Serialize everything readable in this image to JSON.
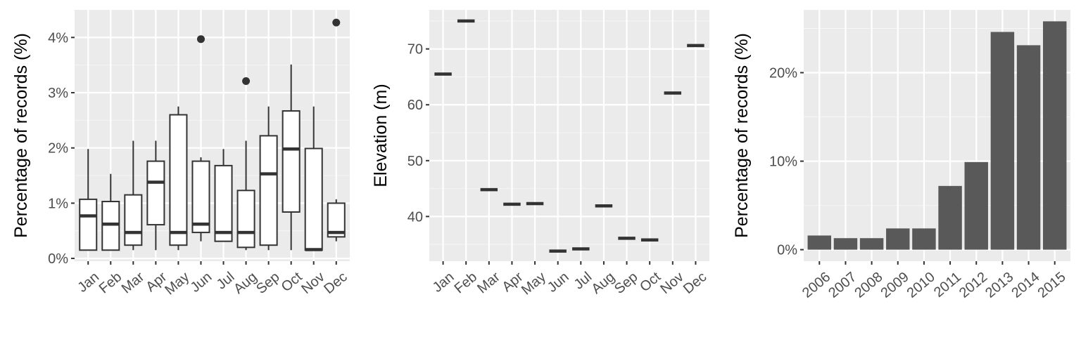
{
  "colors": {
    "panel_bg": "#ebebeb",
    "grid_major": "#ffffff",
    "ink": "#333333",
    "bar_fill": "#595959",
    "tick_text": "#4d4d4d",
    "box_fill": "#ffffff"
  },
  "chart_data": [
    {
      "type": "boxplot",
      "ylabel": "Percentage of records (%)",
      "xlabel": "",
      "categories": [
        "Jan",
        "Feb",
        "Mar",
        "Apr",
        "May",
        "Jun",
        "Jul",
        "Aug",
        "Sep",
        "Oct",
        "Nov",
        "Dec"
      ],
      "ylim": [
        -0.05,
        4.5
      ],
      "yticks": [
        0,
        1,
        2,
        3,
        4
      ],
      "ytick_labels": [
        "0%",
        "1%",
        "2%",
        "3%",
        "4%"
      ],
      "grid": true,
      "boxes": [
        {
          "min": 0.15,
          "q1": 0.15,
          "median": 0.77,
          "q3": 1.07,
          "max": 1.98,
          "outliers": []
        },
        {
          "min": 0.15,
          "q1": 0.15,
          "median": 0.62,
          "q3": 1.03,
          "max": 1.53,
          "outliers": []
        },
        {
          "min": 0.15,
          "q1": 0.24,
          "median": 0.47,
          "q3": 1.15,
          "max": 2.13,
          "outliers": []
        },
        {
          "min": 0.15,
          "q1": 0.61,
          "median": 1.38,
          "q3": 1.76,
          "max": 2.13,
          "outliers": []
        },
        {
          "min": 0.15,
          "q1": 0.24,
          "median": 0.47,
          "q3": 2.6,
          "max": 2.75,
          "outliers": []
        },
        {
          "min": 0.31,
          "q1": 0.47,
          "median": 0.62,
          "q3": 1.76,
          "max": 1.83,
          "outliers": [
            3.97
          ]
        },
        {
          "min": 0.31,
          "q1": 0.31,
          "median": 0.47,
          "q3": 1.68,
          "max": 1.98,
          "outliers": []
        },
        {
          "min": 0.15,
          "q1": 0.2,
          "median": 0.47,
          "q3": 1.23,
          "max": 2.13,
          "outliers": [
            3.21
          ]
        },
        {
          "min": 0.15,
          "q1": 0.24,
          "median": 1.53,
          "q3": 2.22,
          "max": 2.75,
          "outliers": []
        },
        {
          "min": 0.15,
          "q1": 0.84,
          "median": 1.98,
          "q3": 2.67,
          "max": 3.51,
          "outliers": []
        },
        {
          "min": 0.15,
          "q1": 0.15,
          "median": 0.16,
          "q3": 1.99,
          "max": 2.75,
          "outliers": []
        },
        {
          "min": 0.31,
          "q1": 0.39,
          "median": 0.47,
          "q3": 1.0,
          "max": 1.07,
          "outliers": [
            4.27
          ]
        }
      ]
    },
    {
      "type": "boxplot",
      "ylabel": "Elevation (m)",
      "xlabel": "",
      "categories": [
        "Jan",
        "Feb",
        "Mar",
        "Apr",
        "May",
        "Jun",
        "Jul",
        "Aug",
        "Sep",
        "Oct",
        "Nov",
        "Dec"
      ],
      "ylim": [
        32,
        77
      ],
      "yticks": [
        40,
        50,
        60,
        70
      ],
      "ytick_labels": [
        "40",
        "50",
        "60",
        "70"
      ],
      "grid": true,
      "values": [
        65.5,
        75.0,
        44.8,
        42.2,
        42.3,
        33.8,
        34.2,
        41.9,
        36.1,
        35.8,
        62.1,
        70.6
      ]
    },
    {
      "type": "bar",
      "ylabel": "Percentage of records (%)",
      "xlabel": "",
      "categories": [
        "2006",
        "2007",
        "2008",
        "2009",
        "2010",
        "2011",
        "2012",
        "2013",
        "2014",
        "2015"
      ],
      "values": [
        1.6,
        1.3,
        1.3,
        2.4,
        2.4,
        7.2,
        9.9,
        24.6,
        23.1,
        25.8
      ],
      "ylim": [
        -1.3,
        27.1
      ],
      "yticks": [
        0,
        10,
        20
      ],
      "ytick_labels": [
        "0%",
        "10%",
        "20%"
      ],
      "grid": true
    }
  ]
}
